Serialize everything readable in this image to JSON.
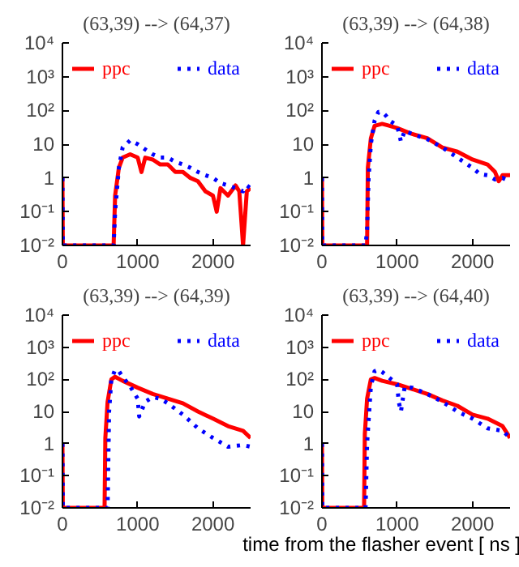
{
  "chart_data": [
    {
      "type": "line",
      "title": "(63,39) --> (64,37)",
      "log": "y",
      "legend": "top",
      "grid": false,
      "xlim": [
        0,
        2500
      ],
      "xticks": [
        0,
        1000,
        2000
      ],
      "ylim": [
        0.01,
        10000
      ],
      "yticks": [
        {
          "value": 0.01,
          "label": "10⁻²"
        },
        {
          "value": 0.1,
          "label": "10⁻¹"
        },
        1,
        10,
        {
          "value": 100,
          "label": "10²"
        },
        {
          "value": 1000,
          "label": "10³"
        },
        {
          "value": 10000,
          "label": "10⁴"
        }
      ],
      "series": [
        {
          "name": "ppc",
          "color": "#ff0000",
          "line_style": "solid",
          "x": [
            0,
            5,
            680,
            700,
            750,
            800,
            900,
            1000,
            1050,
            1100,
            1200,
            1300,
            1400,
            1500,
            1600,
            1700,
            1800,
            1900,
            2000,
            2050,
            2100,
            2200,
            2300,
            2350,
            2400,
            2450,
            2500
          ],
          "values": [
            1,
            0.01,
            0.01,
            0.3,
            2,
            4,
            5,
            4,
            1.5,
            4,
            3.5,
            2.5,
            2.5,
            1.5,
            1.5,
            1,
            0.8,
            0.4,
            0.3,
            0.1,
            0.5,
            0.3,
            0.6,
            0.4,
            0.01,
            0.4,
            0.5
          ]
        },
        {
          "name": "data",
          "color": "#0000ff",
          "line_style": "dotted",
          "x": [
            0,
            5,
            680,
            700,
            750,
            800,
            900,
            1000,
            1100,
            1200,
            1300,
            1400,
            1500,
            1600,
            1700,
            1800,
            1900,
            2000,
            2100,
            2200,
            2300,
            2400,
            2450,
            2500
          ],
          "values": [
            1,
            0.01,
            0.01,
            0.1,
            2,
            8,
            13,
            10,
            7,
            5,
            4,
            4,
            3,
            2.5,
            2,
            1.5,
            1.2,
            1,
            0.7,
            0.6,
            0.5,
            0.4,
            0.6,
            0.5
          ]
        }
      ]
    },
    {
      "type": "line",
      "title": "(63,39) --> (64,38)",
      "log": "y",
      "legend": "top",
      "grid": false,
      "xlim": [
        0,
        2500
      ],
      "xticks": [
        0,
        1000,
        2000
      ],
      "ylim": [
        0.01,
        10000
      ],
      "yticks": [
        {
          "value": 0.01,
          "label": "10⁻²"
        },
        {
          "value": 0.1,
          "label": "10⁻¹"
        },
        1,
        10,
        {
          "value": 100,
          "label": "10²"
        },
        {
          "value": 1000,
          "label": "10³"
        },
        {
          "value": 10000,
          "label": "10⁴"
        }
      ],
      "series": [
        {
          "name": "ppc",
          "color": "#ff0000",
          "line_style": "solid",
          "x": [
            0,
            5,
            600,
            610,
            650,
            700,
            800,
            900,
            1000,
            1200,
            1400,
            1600,
            1800,
            2000,
            2200,
            2300,
            2350,
            2400,
            2500
          ],
          "values": [
            1,
            0.01,
            0.01,
            2,
            15,
            35,
            40,
            35,
            30,
            20,
            15,
            8,
            6,
            3.5,
            2.5,
            1.5,
            0.8,
            1.2,
            1.2
          ]
        },
        {
          "name": "data",
          "color": "#0000ff",
          "line_style": "dotted",
          "x": [
            0,
            5,
            580,
            600,
            620,
            650,
            700,
            750,
            800,
            850,
            900,
            1000,
            1050,
            1100,
            1200,
            1400,
            1600,
            1800,
            2000,
            2100,
            2200,
            2300,
            2400,
            2500
          ],
          "values": [
            1,
            0.01,
            0.01,
            0.03,
            1,
            10,
            50,
            90,
            90,
            70,
            50,
            35,
            12,
            25,
            20,
            14,
            8,
            4,
            2,
            1.3,
            1.2,
            0.9,
            1,
            0.8
          ]
        }
      ]
    },
    {
      "type": "line",
      "title": "(63,39) --> (64,39)",
      "log": "y",
      "legend": "top",
      "grid": false,
      "xlim": [
        0,
        2500
      ],
      "xticks": [
        0,
        1000,
        2000
      ],
      "ylim": [
        0.01,
        10000
      ],
      "yticks": [
        {
          "value": 0.01,
          "label": "10⁻²"
        },
        {
          "value": 0.1,
          "label": "10⁻¹"
        },
        1,
        10,
        {
          "value": 100,
          "label": "10²"
        },
        {
          "value": 1000,
          "label": "10³"
        },
        {
          "value": 10000,
          "label": "10⁴"
        }
      ],
      "series": [
        {
          "name": "ppc",
          "color": "#ff0000",
          "line_style": "solid",
          "x": [
            0,
            5,
            560,
            570,
            600,
            650,
            700,
            800,
            1000,
            1200,
            1400,
            1600,
            1800,
            2000,
            2200,
            2400,
            2500
          ],
          "values": [
            1,
            0.01,
            0.01,
            1.5,
            20,
            100,
            120,
            90,
            55,
            35,
            25,
            18,
            10,
            6,
            3.5,
            2.5,
            1.5
          ]
        },
        {
          "name": "data",
          "color": "#0000ff",
          "line_style": "dotted",
          "x": [
            0,
            5,
            600,
            620,
            650,
            700,
            750,
            800,
            900,
            1000,
            1020,
            1100,
            1200,
            1300,
            1400,
            1600,
            1800,
            2000,
            2200,
            2400,
            2500
          ],
          "values": [
            1,
            0.01,
            0.01,
            10,
            100,
            200,
            180,
            120,
            60,
            25,
            7,
            20,
            28,
            25,
            18,
            8,
            3,
            1.5,
            0.8,
            0.9,
            0.8
          ]
        }
      ]
    },
    {
      "type": "line",
      "title": "(63,39) --> (64,40)",
      "xlabel": "time from the flasher event [ ns ]",
      "log": "y",
      "legend": "top",
      "grid": false,
      "xlim": [
        0,
        2500
      ],
      "xticks": [
        0,
        1000,
        2000
      ],
      "ylim": [
        0.01,
        10000
      ],
      "yticks": [
        {
          "value": 0.01,
          "label": "10⁻²"
        },
        {
          "value": 0.1,
          "label": "10⁻¹"
        },
        1,
        10,
        {
          "value": 100,
          "label": "10²"
        },
        {
          "value": 1000,
          "label": "10³"
        },
        {
          "value": 10000,
          "label": "10⁴"
        }
      ],
      "series": [
        {
          "name": "ppc",
          "color": "#ff0000",
          "line_style": "solid",
          "x": [
            0,
            5,
            560,
            570,
            600,
            650,
            700,
            800,
            1000,
            1200,
            1400,
            1600,
            1800,
            2000,
            2200,
            2400,
            2500
          ],
          "values": [
            1,
            0.01,
            0.01,
            2,
            25,
            100,
            110,
            90,
            70,
            50,
            35,
            22,
            15,
            8,
            6,
            3.5,
            1.5
          ]
        },
        {
          "name": "data",
          "color": "#0000ff",
          "line_style": "dotted",
          "x": [
            0,
            5,
            580,
            600,
            650,
            700,
            750,
            800,
            900,
            1000,
            1020,
            1050,
            1100,
            1200,
            1400,
            1600,
            1800,
            2000,
            2200,
            2400,
            2500
          ],
          "values": [
            1,
            0.01,
            0.01,
            1,
            60,
            180,
            200,
            170,
            110,
            70,
            20,
            10,
            60,
            55,
            35,
            20,
            10,
            6,
            3,
            2.5,
            1.5
          ]
        }
      ]
    }
  ]
}
